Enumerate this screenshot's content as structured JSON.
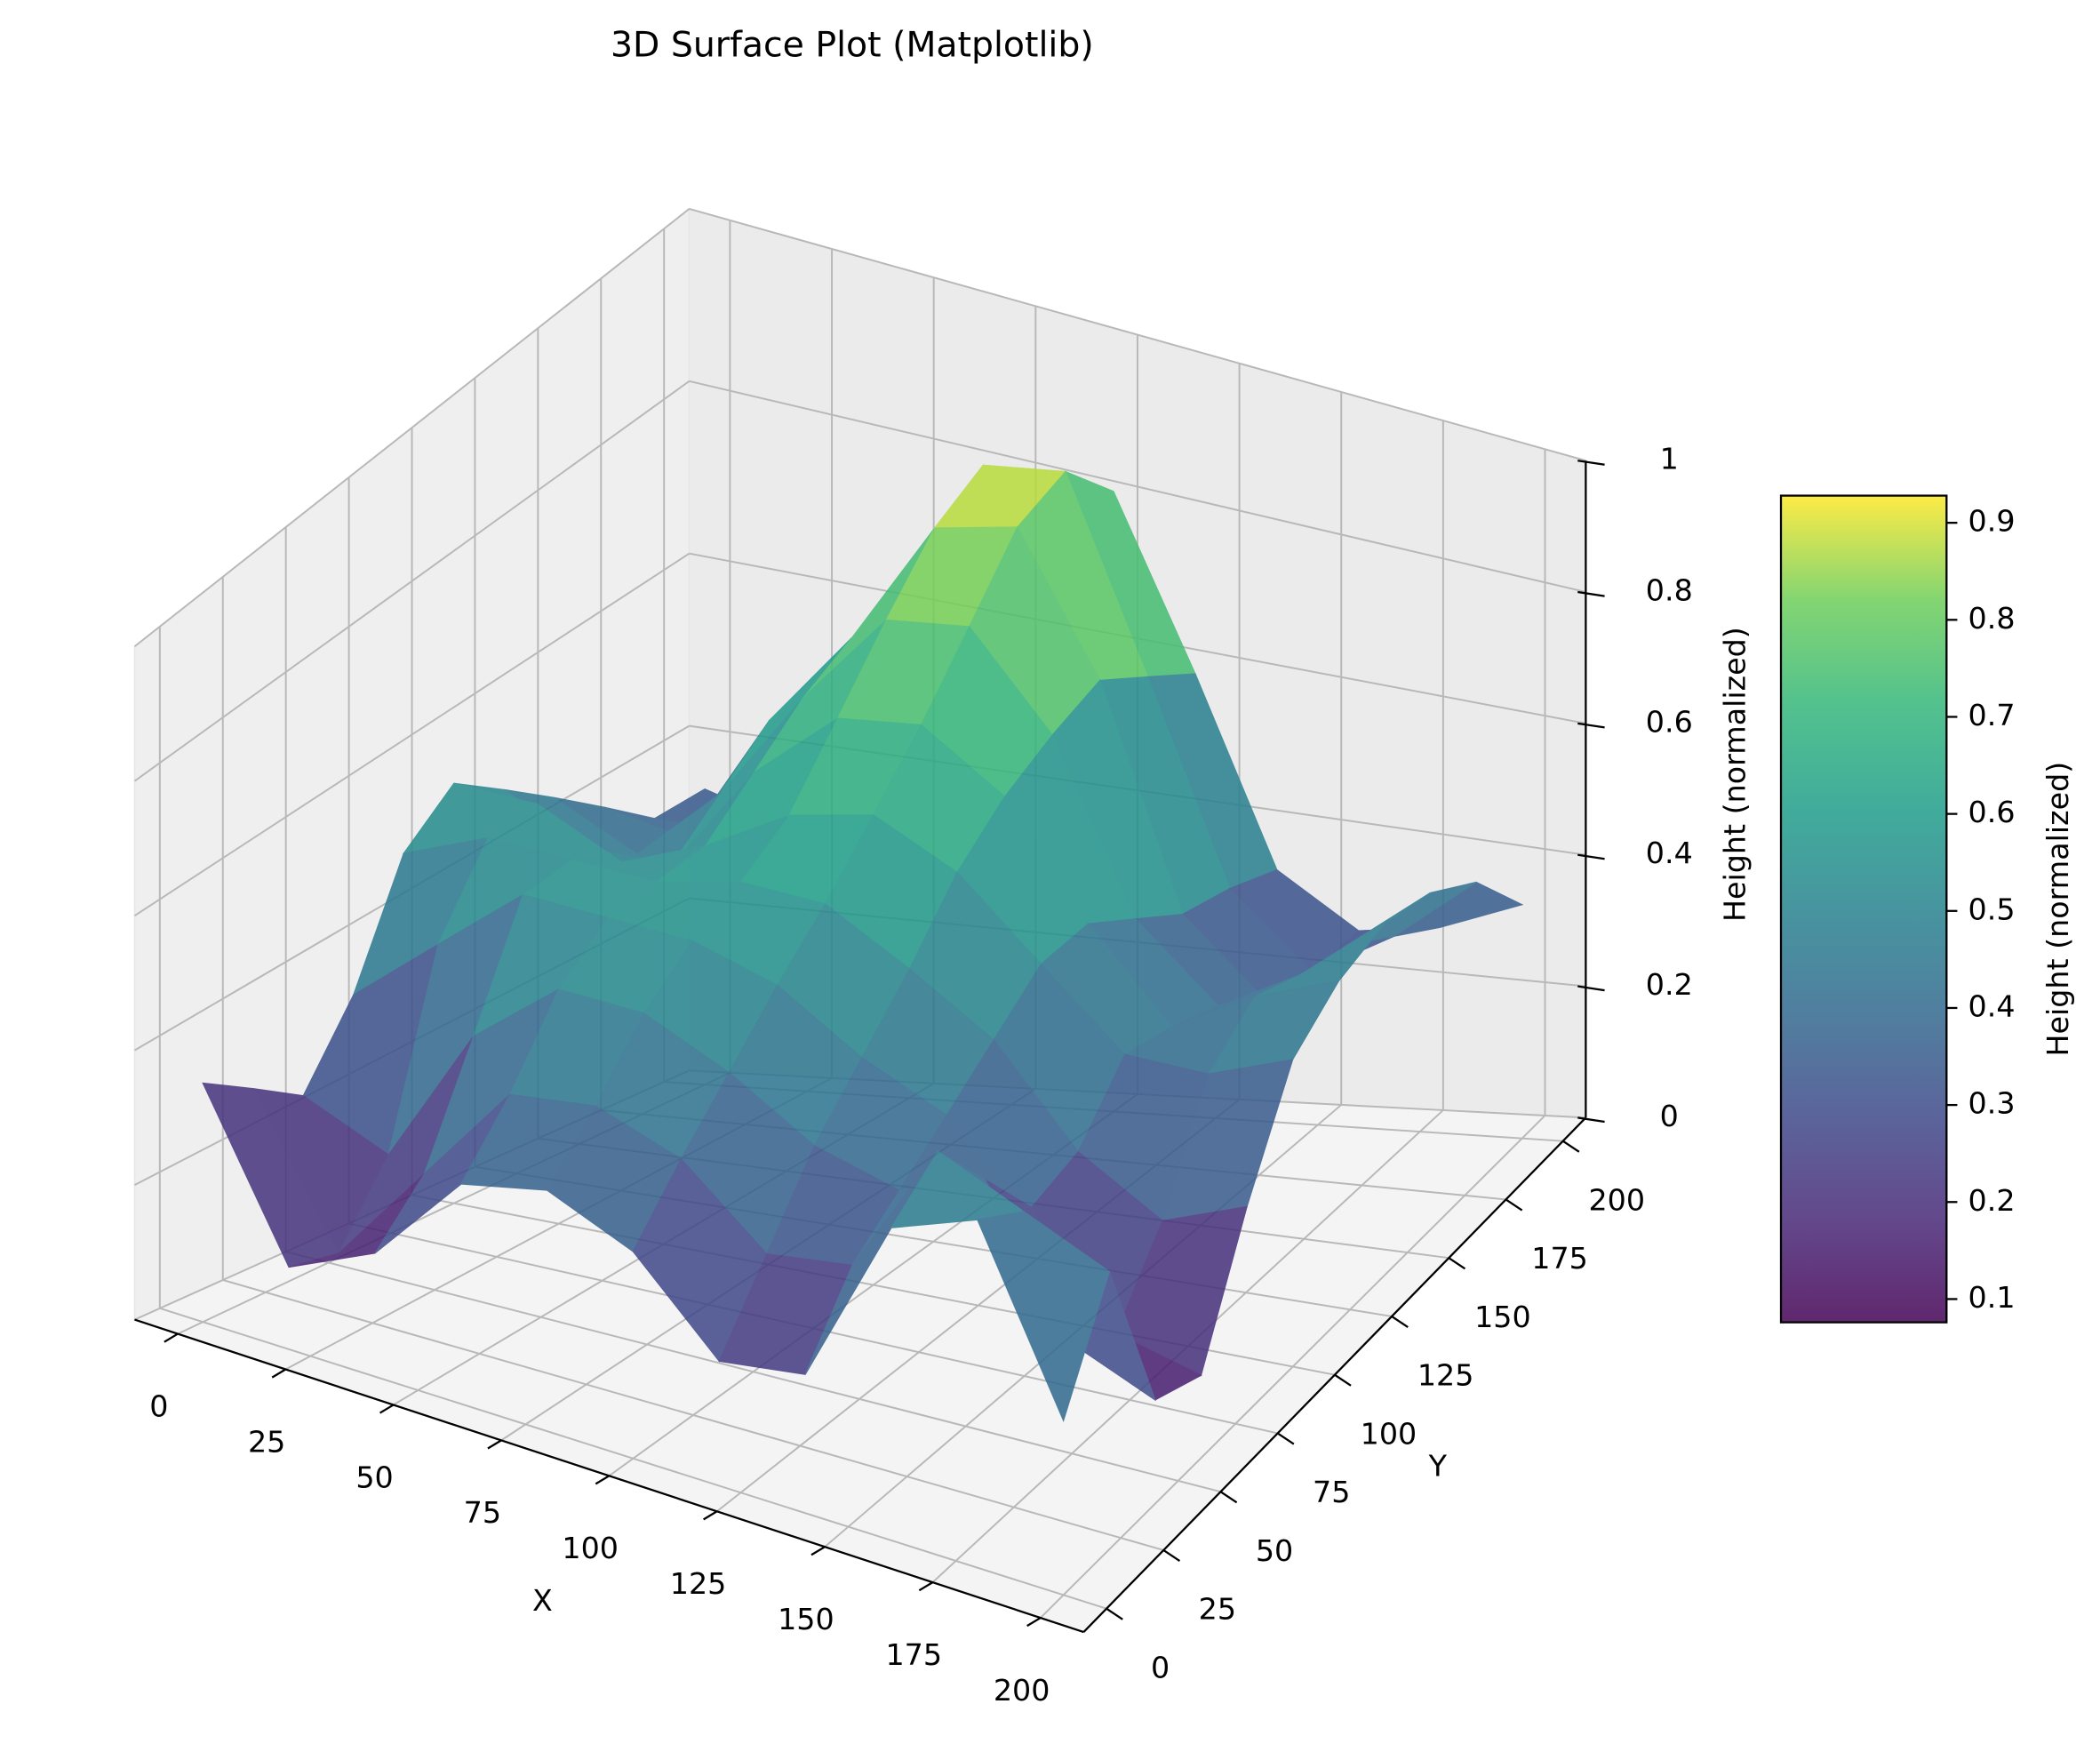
{
  "chart_data": {
    "type": "surface",
    "title": "3D Surface Plot (Matplotlib)",
    "xlabel": "X",
    "ylabel": "Y",
    "zlabel": "Height (normalized)",
    "x": [
      0,
      20,
      40,
      60,
      80,
      100,
      120,
      140,
      160,
      180,
      200
    ],
    "y": [
      0,
      20,
      40,
      60,
      80,
      100,
      120,
      140,
      160,
      180,
      200
    ],
    "z": [
      [
        0.35,
        0.12,
        0.18,
        0.32,
        0.35,
        0.3,
        0.18,
        0.2,
        0.45,
        0.5,
        0.25
      ],
      [
        0.3,
        0.1,
        0.25,
        0.4,
        0.42,
        0.38,
        0.28,
        0.3,
        0.5,
        0.45,
        0.4
      ],
      [
        0.25,
        0.2,
        0.4,
        0.5,
        0.5,
        0.45,
        0.38,
        0.35,
        0.4,
        0.2,
        0.15
      ],
      [
        0.35,
        0.45,
        0.55,
        0.55,
        0.55,
        0.52,
        0.45,
        0.4,
        0.3,
        0.15,
        0.12
      ],
      [
        0.5,
        0.55,
        0.55,
        0.55,
        0.58,
        0.58,
        0.52,
        0.45,
        0.32,
        0.25,
        0.3
      ],
      [
        0.55,
        0.55,
        0.5,
        0.55,
        0.62,
        0.65,
        0.6,
        0.5,
        0.4,
        0.4,
        0.45
      ],
      [
        0.5,
        0.45,
        0.45,
        0.6,
        0.7,
        0.72,
        0.65,
        0.5,
        0.38,
        0.45,
        0.5
      ],
      [
        0.45,
        0.4,
        0.5,
        0.65,
        0.78,
        0.8,
        0.68,
        0.45,
        0.35,
        0.42,
        0.52
      ],
      [
        0.4,
        0.38,
        0.55,
        0.68,
        0.85,
        0.88,
        0.7,
        0.4,
        0.3,
        0.4,
        0.5
      ],
      [
        0.35,
        0.35,
        0.52,
        0.65,
        0.88,
        0.9,
        0.65,
        0.38,
        0.28,
        0.35,
        0.45
      ],
      [
        0.35,
        0.32,
        0.45,
        0.6,
        0.8,
        0.82,
        0.6,
        0.35,
        0.28,
        0.3,
        0.35
      ]
    ],
    "xlim": [
      -10,
      210
    ],
    "ylim": [
      -10,
      210
    ],
    "zlim": [
      0,
      1
    ],
    "xticks": [
      0,
      25,
      50,
      75,
      100,
      125,
      150,
      175,
      200
    ],
    "yticks": [
      0,
      25,
      50,
      75,
      100,
      125,
      150,
      175,
      200
    ],
    "zticks": [
      0.0,
      0.2,
      0.4,
      0.6,
      0.8,
      1.0
    ],
    "colormap": "viridis",
    "grid": true,
    "colorbar": {
      "label": "Height (normalized)",
      "lim": [
        0.076,
        0.928
      ],
      "ticks": [
        0.1,
        0.2,
        0.3,
        0.4,
        0.5,
        0.6,
        0.7,
        0.8,
        0.9
      ]
    }
  }
}
